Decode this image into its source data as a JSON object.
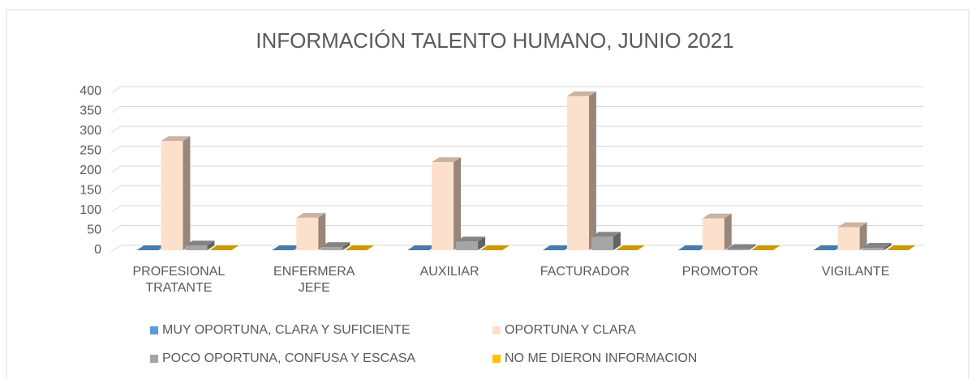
{
  "chart_data": {
    "type": "bar3d",
    "title": "INFORMACIÓN TALENTO HUMANO,  JUNIO 2021",
    "categories": [
      "PROFESIONAL TRATANTE",
      "ENFERMERA JEFE",
      "AUXILIAR",
      "FACTURADOR",
      "PROMOTOR",
      "VIGILANTE"
    ],
    "series": [
      {
        "name": "MUY OPORTUNA, CLARA Y SUFICIENTE",
        "color": "#5b9bd5",
        "values": [
          0,
          0,
          0,
          0,
          0,
          0
        ]
      },
      {
        "name": "OPORTUNA Y CLARA",
        "color": "#fde0cc",
        "values": [
          275,
          82,
          222,
          388,
          80,
          58
        ]
      },
      {
        "name": "POCO OPORTUNA, CONFUSA Y ESCASA",
        "color": "#a5a5a5",
        "values": [
          12,
          8,
          22,
          34,
          3,
          6
        ]
      },
      {
        "name": "NO ME DIERON INFORMACION",
        "color": "#ffc000",
        "values": [
          0,
          0,
          0,
          0,
          0,
          0
        ]
      }
    ],
    "ylim": [
      0,
      400
    ],
    "yticks": [
      0,
      50,
      100,
      150,
      200,
      250,
      300,
      350,
      400
    ],
    "grid": true,
    "legend": "bottom"
  }
}
